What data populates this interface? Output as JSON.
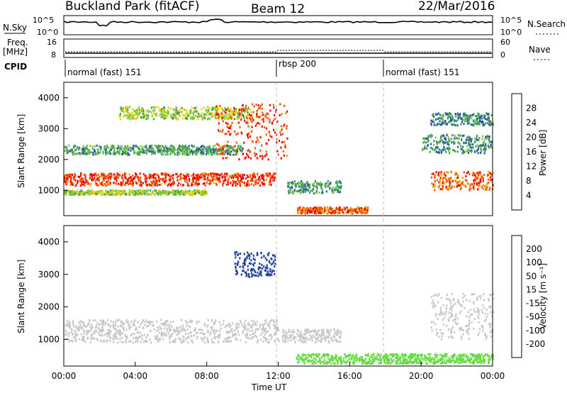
{
  "header": {
    "title": "Buckland Park (fitACF)",
    "beam": "Beam 12",
    "date": "22/Mar/2016"
  },
  "params": {
    "nsky_label": "N.Sky",
    "nsearch_label": "N.Search",
    "freq_label_1": "Freq.",
    "freq_label_2": "[MHz]",
    "nave_label": "Nave",
    "cpid_label": "CPID",
    "noise_ticks": [
      "10^5",
      "10^0"
    ],
    "freq_ticks": [
      "16",
      "8"
    ],
    "nave_ticks": [
      "60",
      "0"
    ],
    "cpid_segments": [
      {
        "label": "normal (fast) 151",
        "start": 0,
        "end": 12
      },
      {
        "label": "rbsp 200",
        "start": 12,
        "end": 18
      },
      {
        "label": "normal (fast) 151",
        "start": 18,
        "end": 24
      }
    ]
  },
  "colors": {
    "power_scale": [
      "#0000ff",
      "#2b57a8",
      "#3e9c55",
      "#7cc64a",
      "#f0d000",
      "#f59b00",
      "#f25500",
      "#ee0000"
    ],
    "velocity_scale": [
      "#ff0000",
      "#ff5500",
      "#ff9a00",
      "#ffc800",
      "#c8c8c8",
      "#c8c8c8",
      "#66dd44",
      "#2bb52b",
      "#1e7a3a",
      "#2040a0",
      "#0000ff"
    ]
  },
  "chart_data": [
    {
      "type": "heatmap",
      "name": "power",
      "xlabel": "Time UT",
      "ylabel": "Slant Range [km]",
      "xlim": [
        0,
        24
      ],
      "ylim": [
        180,
        4500
      ],
      "x_ticks": [
        "00:00",
        "04:00",
        "08:00",
        "12:00",
        "16:00",
        "20:00",
        "00:00"
      ],
      "y_ticks": [
        1000,
        2000,
        3000,
        4000
      ],
      "colorbar": {
        "label": "Power [dB]",
        "ticks": [
          "4",
          "8",
          "12",
          "16",
          "20",
          "24",
          "28"
        ],
        "range": [
          0,
          30
        ]
      },
      "features": [
        {
          "time": [
            0,
            11.8
          ],
          "range": [
            1150,
            1550
          ],
          "value": 26
        },
        {
          "time": [
            0,
            8
          ],
          "range": [
            850,
            1000
          ],
          "value": 14
        },
        {
          "time": [
            0,
            10
          ],
          "range": [
            2150,
            2450
          ],
          "value": 10
        },
        {
          "time": [
            3,
            10.5
          ],
          "range": [
            3300,
            3700
          ],
          "value": 14
        },
        {
          "time": [
            8.5,
            12.5
          ],
          "range": [
            2000,
            3800
          ],
          "value": 26
        },
        {
          "time": [
            12.5,
            15.5
          ],
          "range": [
            900,
            1300
          ],
          "value": 10
        },
        {
          "time": [
            13,
            17
          ],
          "range": [
            250,
            450
          ],
          "value": 24
        },
        {
          "time": [
            20.5,
            24
          ],
          "range": [
            1000,
            1600
          ],
          "value": 24
        },
        {
          "time": [
            20,
            24
          ],
          "range": [
            2200,
            2800
          ],
          "value": 9
        },
        {
          "time": [
            20.5,
            24
          ],
          "range": [
            3100,
            3500
          ],
          "value": 8
        }
      ]
    },
    {
      "type": "heatmap",
      "name": "velocity",
      "xlabel": "Time UT",
      "ylabel": "Slant Range [km]",
      "xlim": [
        0,
        24
      ],
      "ylim": [
        180,
        4500
      ],
      "x_ticks": [
        "00:00",
        "04:00",
        "08:00",
        "12:00",
        "16:00",
        "20:00",
        "00:00"
      ],
      "y_ticks": [
        1000,
        2000,
        3000,
        4000
      ],
      "colorbar": {
        "label": "Velocity [m s⁻¹]",
        "ticks": [
          "200",
          "100",
          "50",
          "15",
          "-15",
          "-50",
          "-100",
          "-200"
        ],
        "range": [
          -250,
          250
        ]
      },
      "features": [
        {
          "time": [
            0,
            12
          ],
          "range": [
            900,
            1600
          ],
          "value": 0
        },
        {
          "time": [
            9.5,
            11.8
          ],
          "range": [
            2900,
            3700
          ],
          "value": 200
        },
        {
          "time": [
            13,
            24
          ],
          "range": [
            250,
            550
          ],
          "value": 30
        },
        {
          "time": [
            12.2,
            15.5
          ],
          "range": [
            900,
            1300
          ],
          "value": 5
        },
        {
          "time": [
            20.5,
            24
          ],
          "range": [
            1000,
            2400
          ],
          "value": 0
        }
      ]
    }
  ]
}
